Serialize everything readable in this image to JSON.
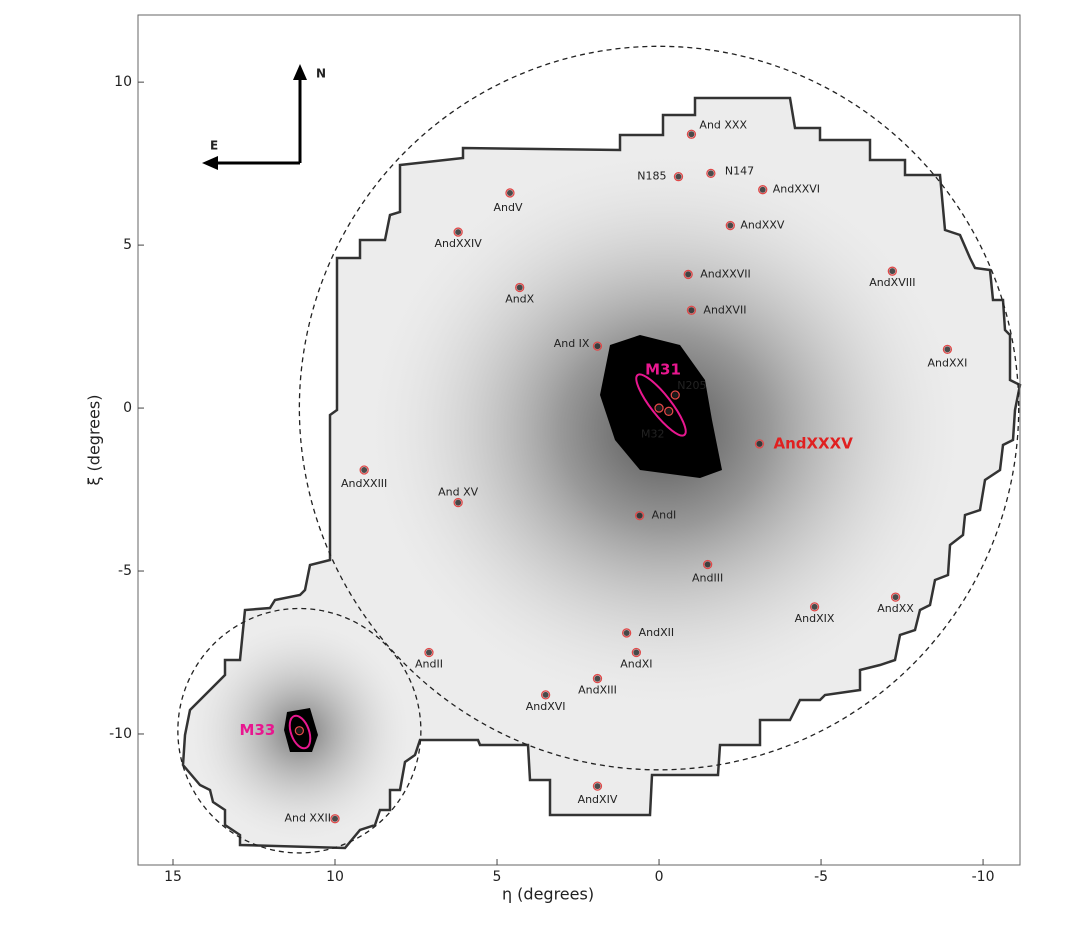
{
  "chart_data": {
    "type": "scatter",
    "x_label": "η (degrees)",
    "y_label": "ξ (degrees)",
    "xlim": [
      16.08,
      -11.14
    ],
    "ylim": [
      -14.02,
      12.06
    ],
    "xticks": [
      15,
      10,
      5,
      0,
      -5,
      -10
    ],
    "yticks": [
      10,
      5,
      0,
      -5,
      -10
    ],
    "marker_color": "#e04848",
    "compass": {
      "north": "N",
      "east": "E"
    },
    "circles": [
      {
        "center": [
          0,
          0
        ],
        "radius": 11.1
      },
      {
        "center": [
          11.1,
          -9.9
        ],
        "radius": 3.75
      }
    ],
    "points": [
      {
        "label": "And XXX",
        "x": -1.0,
        "y": 8.4
      },
      {
        "label": "N147",
        "x": -1.6,
        "y": 7.2
      },
      {
        "label": "N185",
        "x": -0.6,
        "y": 7.1
      },
      {
        "label": "AndXXVI",
        "x": -3.2,
        "y": 6.7
      },
      {
        "label": "AndV",
        "x": 4.6,
        "y": 6.6
      },
      {
        "label": "AndXXV",
        "x": -2.2,
        "y": 5.6
      },
      {
        "label": "AndXXIV",
        "x": 6.2,
        "y": 5.4
      },
      {
        "label": "AndXXVII",
        "x": -0.9,
        "y": 4.1
      },
      {
        "label": "AndXVIII",
        "x": -7.2,
        "y": 4.2
      },
      {
        "label": "AndX",
        "x": 4.3,
        "y": 3.7
      },
      {
        "label": "AndXVII",
        "x": -1.0,
        "y": 3.0
      },
      {
        "label": "And IX",
        "x": 1.9,
        "y": 1.9
      },
      {
        "label": "AndXXI",
        "x": -8.9,
        "y": 1.8
      },
      {
        "label": "N205",
        "x": -0.5,
        "y": 0.4
      },
      {
        "label": "M31",
        "x": 0,
        "y": 0,
        "label_color": "#e8178f"
      },
      {
        "label": "M32",
        "x": -0.3,
        "y": -0.1
      },
      {
        "label": "AndXXXV",
        "x": -3.1,
        "y": -1.1,
        "label_color": "#e02020"
      },
      {
        "label": "AndXXIII",
        "x": 9.1,
        "y": -1.9
      },
      {
        "label": "And XV",
        "x": 6.2,
        "y": -2.9
      },
      {
        "label": "AndI",
        "x": 0.6,
        "y": -3.3
      },
      {
        "label": "AndIII",
        "x": -1.5,
        "y": -4.8
      },
      {
        "label": "AndXX",
        "x": -7.3,
        "y": -5.8
      },
      {
        "label": "AndXIX",
        "x": -4.8,
        "y": -6.1
      },
      {
        "label": "AndXII",
        "x": 1.0,
        "y": -6.9
      },
      {
        "label": "AndXI",
        "x": 0.7,
        "y": -7.5
      },
      {
        "label": "AndII",
        "x": 7.1,
        "y": -7.5
      },
      {
        "label": "AndXIII",
        "x": 1.9,
        "y": -8.3
      },
      {
        "label": "AndXVI",
        "x": 3.5,
        "y": -8.8
      },
      {
        "label": "M33",
        "x": 11.1,
        "y": -9.9,
        "label_color": "#e8178f"
      },
      {
        "label": "AndXIV",
        "x": 1.9,
        "y": -11.6
      },
      {
        "label": "And XXII",
        "x": 10.0,
        "y": -12.6
      }
    ]
  }
}
